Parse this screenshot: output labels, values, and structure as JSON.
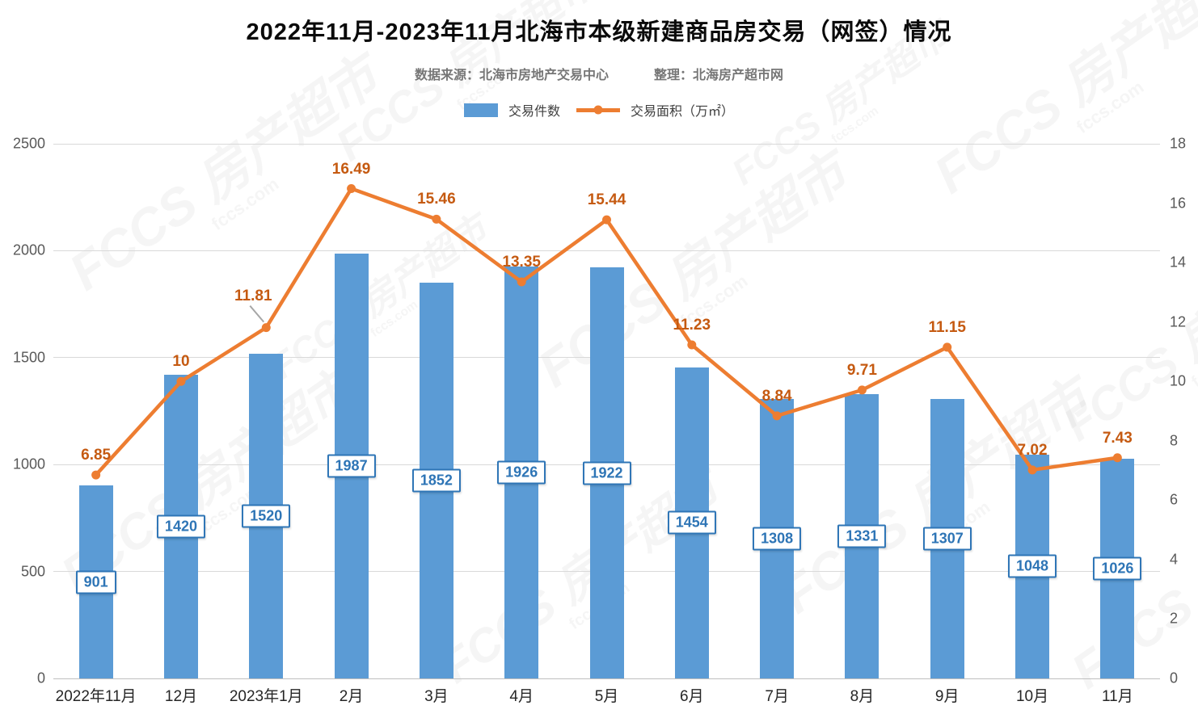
{
  "title": "2022年11月-2023年11月北海市本级新建商品房交易（网签）情况",
  "subtitle": {
    "source_label": "数据来源：北海市房地产交易中心",
    "editor_label": "整理：北海房产超市网"
  },
  "legend": {
    "bar_label": "交易件数",
    "line_label": "交易面积（万㎡）"
  },
  "watermark": {
    "logo_text": "FCCS 房产超市",
    "domain_text": "fccs.com"
  },
  "colors": {
    "bar": "#5b9bd5",
    "line": "#ed7d31",
    "bar_label_text": "#2e75b6",
    "line_label_text": "#c55a11",
    "gridline": "#d9d9d9"
  },
  "chart_data": {
    "type": "bar+line combo",
    "title": "2022年11月-2023年11月北海市本级新建商品房交易（网签）情况",
    "categories": [
      "2022年11月",
      "12月",
      "2023年1月",
      "2月",
      "3月",
      "4月",
      "5月",
      "6月",
      "7月",
      "8月",
      "9月",
      "10月",
      "11月"
    ],
    "series": [
      {
        "name": "交易件数",
        "type": "bar",
        "axis": "left",
        "color": "#5b9bd5",
        "values": [
          901,
          1420,
          1520,
          1987,
          1852,
          1926,
          1922,
          1454,
          1308,
          1331,
          1307,
          1048,
          1026
        ]
      },
      {
        "name": "交易面积（万㎡）",
        "type": "line",
        "axis": "right",
        "color": "#ed7d31",
        "values": [
          6.85,
          10,
          11.81,
          16.49,
          15.46,
          13.35,
          15.44,
          11.23,
          8.84,
          9.71,
          11.15,
          7.02,
          7.43
        ]
      }
    ],
    "left_axis": {
      "min": 0,
      "max": 2500,
      "step": 500,
      "ticks": [
        0,
        500,
        1000,
        1500,
        2000,
        2500
      ]
    },
    "right_axis": {
      "min": 0,
      "max": 18,
      "step": 2,
      "ticks": [
        0,
        2,
        4,
        6,
        8,
        10,
        12,
        14,
        16,
        18
      ]
    },
    "grid": true,
    "legend_position": "top",
    "data_labels": true,
    "callout_index": 2
  }
}
